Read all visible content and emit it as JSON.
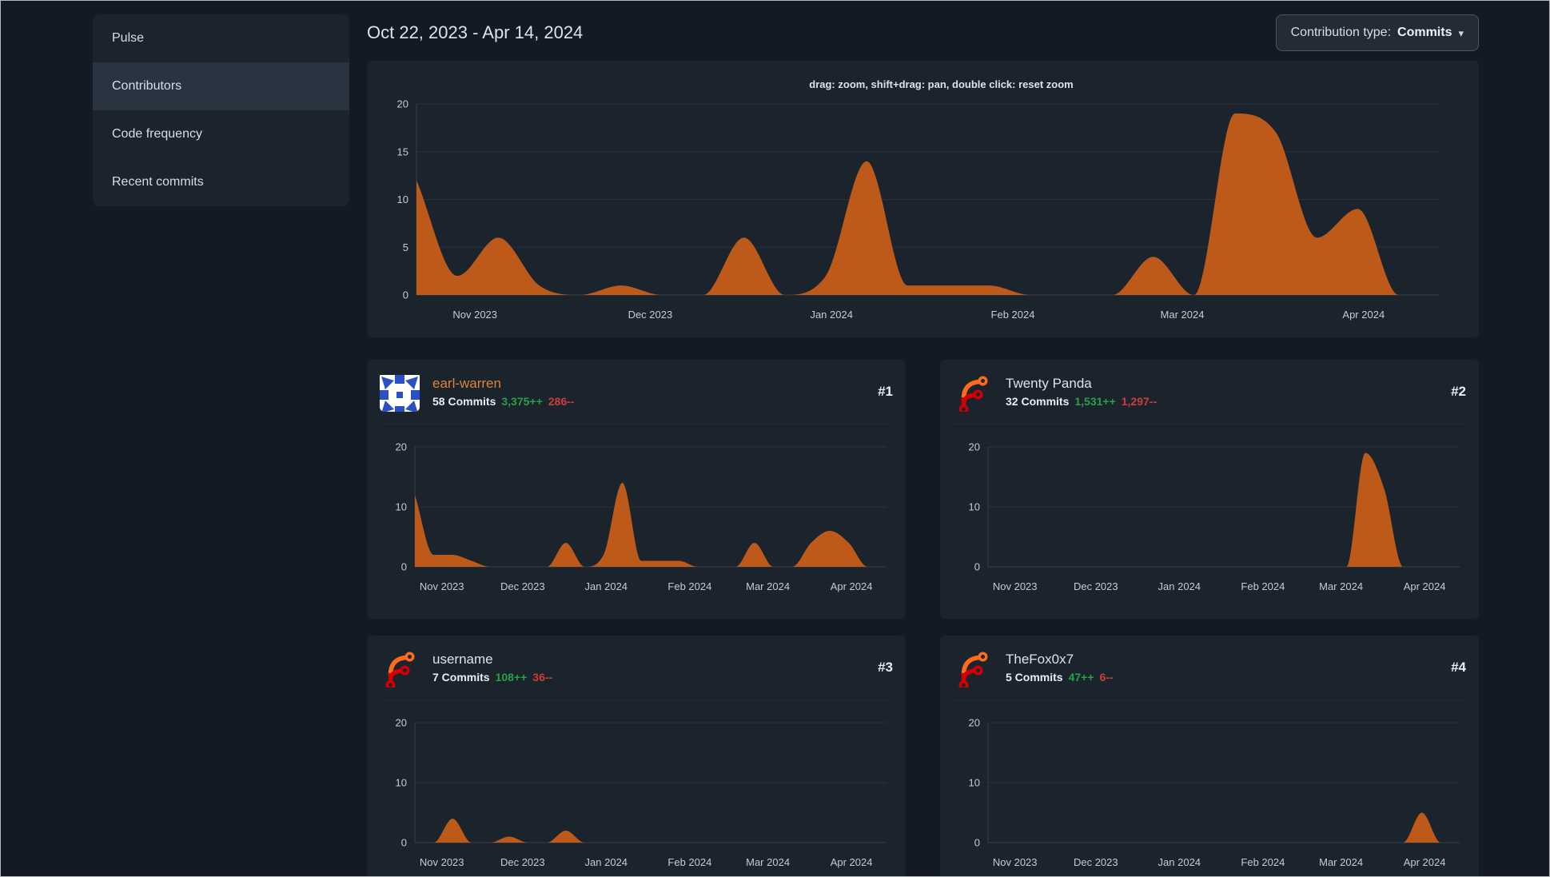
{
  "colors": {
    "page_bg": "#141a23",
    "panel_bg": "#1b232d",
    "sidebar_item_active_bg": "#2a3440",
    "text": "#d8dee7",
    "text_muted": "#c3ccd5",
    "link_orange": "#e0823f",
    "additions_green": "#26a148",
    "deletions_red": "#cc3d3d",
    "chart_fill": "#bd5a19",
    "dropdown_bg": "#222b36",
    "dropdown_border": "#4b5663",
    "window_border": "#b5b9be",
    "grid_line": "rgba(255,255,255,0.07)",
    "axis_line": "rgba(255,255,255,0.12)",
    "identicon_blue": "#2a50c4",
    "identicon_bg": "#ffffff",
    "forgejo_orange": "#ff6b19",
    "forgejo_red": "#d40000"
  },
  "sidebar": {
    "items": [
      {
        "label": "Pulse",
        "slug": "pulse",
        "active": false
      },
      {
        "label": "Contributors",
        "slug": "contributors",
        "active": true
      },
      {
        "label": "Code frequency",
        "slug": "code-frequency",
        "active": false
      },
      {
        "label": "Recent commits",
        "slug": "recent-commits",
        "active": false
      }
    ]
  },
  "header": {
    "date_range": "Oct 22, 2023 - Apr 14, 2024",
    "contribution_type_label": "Contribution type:",
    "contribution_type_value": "Commits"
  },
  "main_chart": {
    "hint": "drag: zoom, shift+drag: pan, double click: reset zoom"
  },
  "contributors": [
    {
      "rank": "#1",
      "name": "earl-warren",
      "commits": "58 Commits",
      "additions": "3,375++",
      "deletions": "286--",
      "avatar": "identicon",
      "name_style": "link"
    },
    {
      "rank": "#2",
      "name": "Twenty Panda",
      "commits": "32 Commits",
      "additions": "1,531++",
      "deletions": "1,297--",
      "avatar": "forgejo",
      "name_style": "default"
    },
    {
      "rank": "#3",
      "name": "username",
      "commits": "7 Commits",
      "additions": "108++",
      "deletions": "36--",
      "avatar": "forgejo",
      "name_style": "default"
    },
    {
      "rank": "#4",
      "name": "TheFox0x7",
      "commits": "5 Commits",
      "additions": "47++",
      "deletions": "6--",
      "avatar": "forgejo",
      "name_style": "default"
    }
  ],
  "chart_data": {
    "type": "area",
    "x_axis": {
      "unit": "week",
      "start": "Oct 22, 2023",
      "end": "Apr 14, 2024",
      "num_weeks": 26,
      "ticks": [
        {
          "label": "Nov 2023",
          "week": 1.43
        },
        {
          "label": "Dec 2023",
          "week": 5.71
        },
        {
          "label": "Jan 2024",
          "week": 10.14
        },
        {
          "label": "Feb 2024",
          "week": 14.57
        },
        {
          "label": "Mar 2024",
          "week": 18.71
        },
        {
          "label": "Apr 2024",
          "week": 23.14
        }
      ]
    },
    "grid": true,
    "fill_color": "#bd5a19",
    "charts": [
      {
        "name": "all-contributors",
        "ylim": [
          0,
          20
        ],
        "yticks": [
          0,
          5,
          10,
          15,
          20
        ],
        "values": [
          12,
          2,
          6,
          1,
          0,
          1,
          0,
          0,
          6,
          0,
          2,
          14,
          1,
          1,
          1,
          0,
          0,
          0,
          4,
          0,
          19,
          17,
          6,
          9,
          0,
          0
        ]
      },
      {
        "name": "earl-warren",
        "ylim": [
          0,
          20
        ],
        "yticks": [
          0,
          10,
          20
        ],
        "values": [
          12,
          2,
          2,
          1,
          0,
          0,
          0,
          0,
          4,
          0,
          2,
          14,
          1,
          1,
          1,
          0,
          0,
          0,
          4,
          0,
          0,
          4,
          6,
          4,
          0,
          0
        ]
      },
      {
        "name": "Twenty Panda",
        "ylim": [
          0,
          20
        ],
        "yticks": [
          0,
          10,
          20
        ],
        "values": [
          0,
          0,
          0,
          0,
          0,
          0,
          0,
          0,
          0,
          0,
          0,
          0,
          0,
          0,
          0,
          0,
          0,
          0,
          0,
          0,
          19,
          13,
          0,
          0,
          0,
          0
        ]
      },
      {
        "name": "username",
        "ylim": [
          0,
          20
        ],
        "yticks": [
          0,
          10,
          20
        ],
        "values": [
          0,
          0,
          4,
          0,
          0,
          1,
          0,
          0,
          2,
          0,
          0,
          0,
          0,
          0,
          0,
          0,
          0,
          0,
          0,
          0,
          0,
          0,
          0,
          0,
          0,
          0
        ]
      },
      {
        "name": "TheFox0x7",
        "ylim": [
          0,
          20
        ],
        "yticks": [
          0,
          10,
          20
        ],
        "values": [
          0,
          0,
          0,
          0,
          0,
          0,
          0,
          0,
          0,
          0,
          0,
          0,
          0,
          0,
          0,
          0,
          0,
          0,
          0,
          0,
          0,
          0,
          0,
          5,
          0,
          0
        ]
      }
    ]
  }
}
